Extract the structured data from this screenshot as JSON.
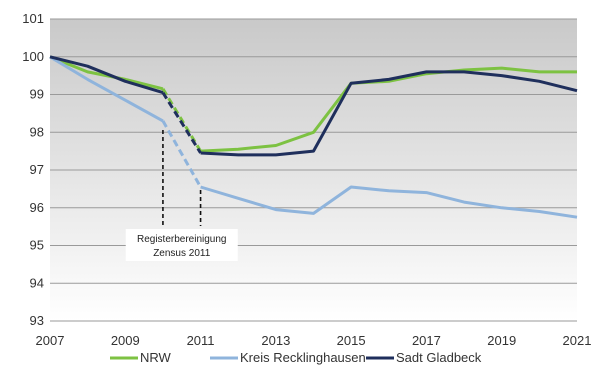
{
  "chart_data": {
    "type": "line",
    "x": [
      2007,
      2008,
      2009,
      2010,
      2011,
      2012,
      2013,
      2014,
      2015,
      2016,
      2017,
      2018,
      2019,
      2020,
      2021
    ],
    "xticks": [
      "2007",
      "2009",
      "2011",
      "2013",
      "2015",
      "2017",
      "2019",
      "2021"
    ],
    "yticks": [
      "93",
      "94",
      "95",
      "96",
      "97",
      "98",
      "99",
      "100",
      "101"
    ],
    "ylim": [
      93,
      101
    ],
    "xlim": [
      2007,
      2021
    ],
    "grid": "horizontal",
    "legend_position": "bottom",
    "series": [
      {
        "name": "NRW",
        "color": "#7dc242",
        "values": [
          100,
          99.6,
          99.4,
          99.15,
          97.5,
          97.55,
          97.65,
          98.0,
          99.3,
          99.35,
          99.55,
          99.65,
          99.7,
          99.6,
          99.6
        ],
        "dashed_segment": [
          2010,
          2011
        ]
      },
      {
        "name": "Kreis Recklinghausen",
        "color": "#8fb4dc",
        "values": [
          100,
          99.4,
          98.85,
          98.3,
          96.55,
          96.25,
          95.95,
          95.85,
          96.55,
          96.45,
          96.4,
          96.15,
          96.0,
          95.9,
          95.75
        ],
        "dashed_segment": [
          2010,
          2011
        ]
      },
      {
        "name": "Sadt Gladbeck",
        "color": "#1f2f5c",
        "values": [
          100,
          99.75,
          99.35,
          99.05,
          97.45,
          97.4,
          97.4,
          97.5,
          99.3,
          99.4,
          99.6,
          99.6,
          99.5,
          99.35,
          99.1
        ],
        "dashed_segment": [
          2010,
          2011
        ]
      }
    ],
    "annotation": {
      "line1": "Registerbereinigung",
      "line2": "Zensus 2011",
      "markers": [
        2010,
        2011
      ]
    }
  }
}
